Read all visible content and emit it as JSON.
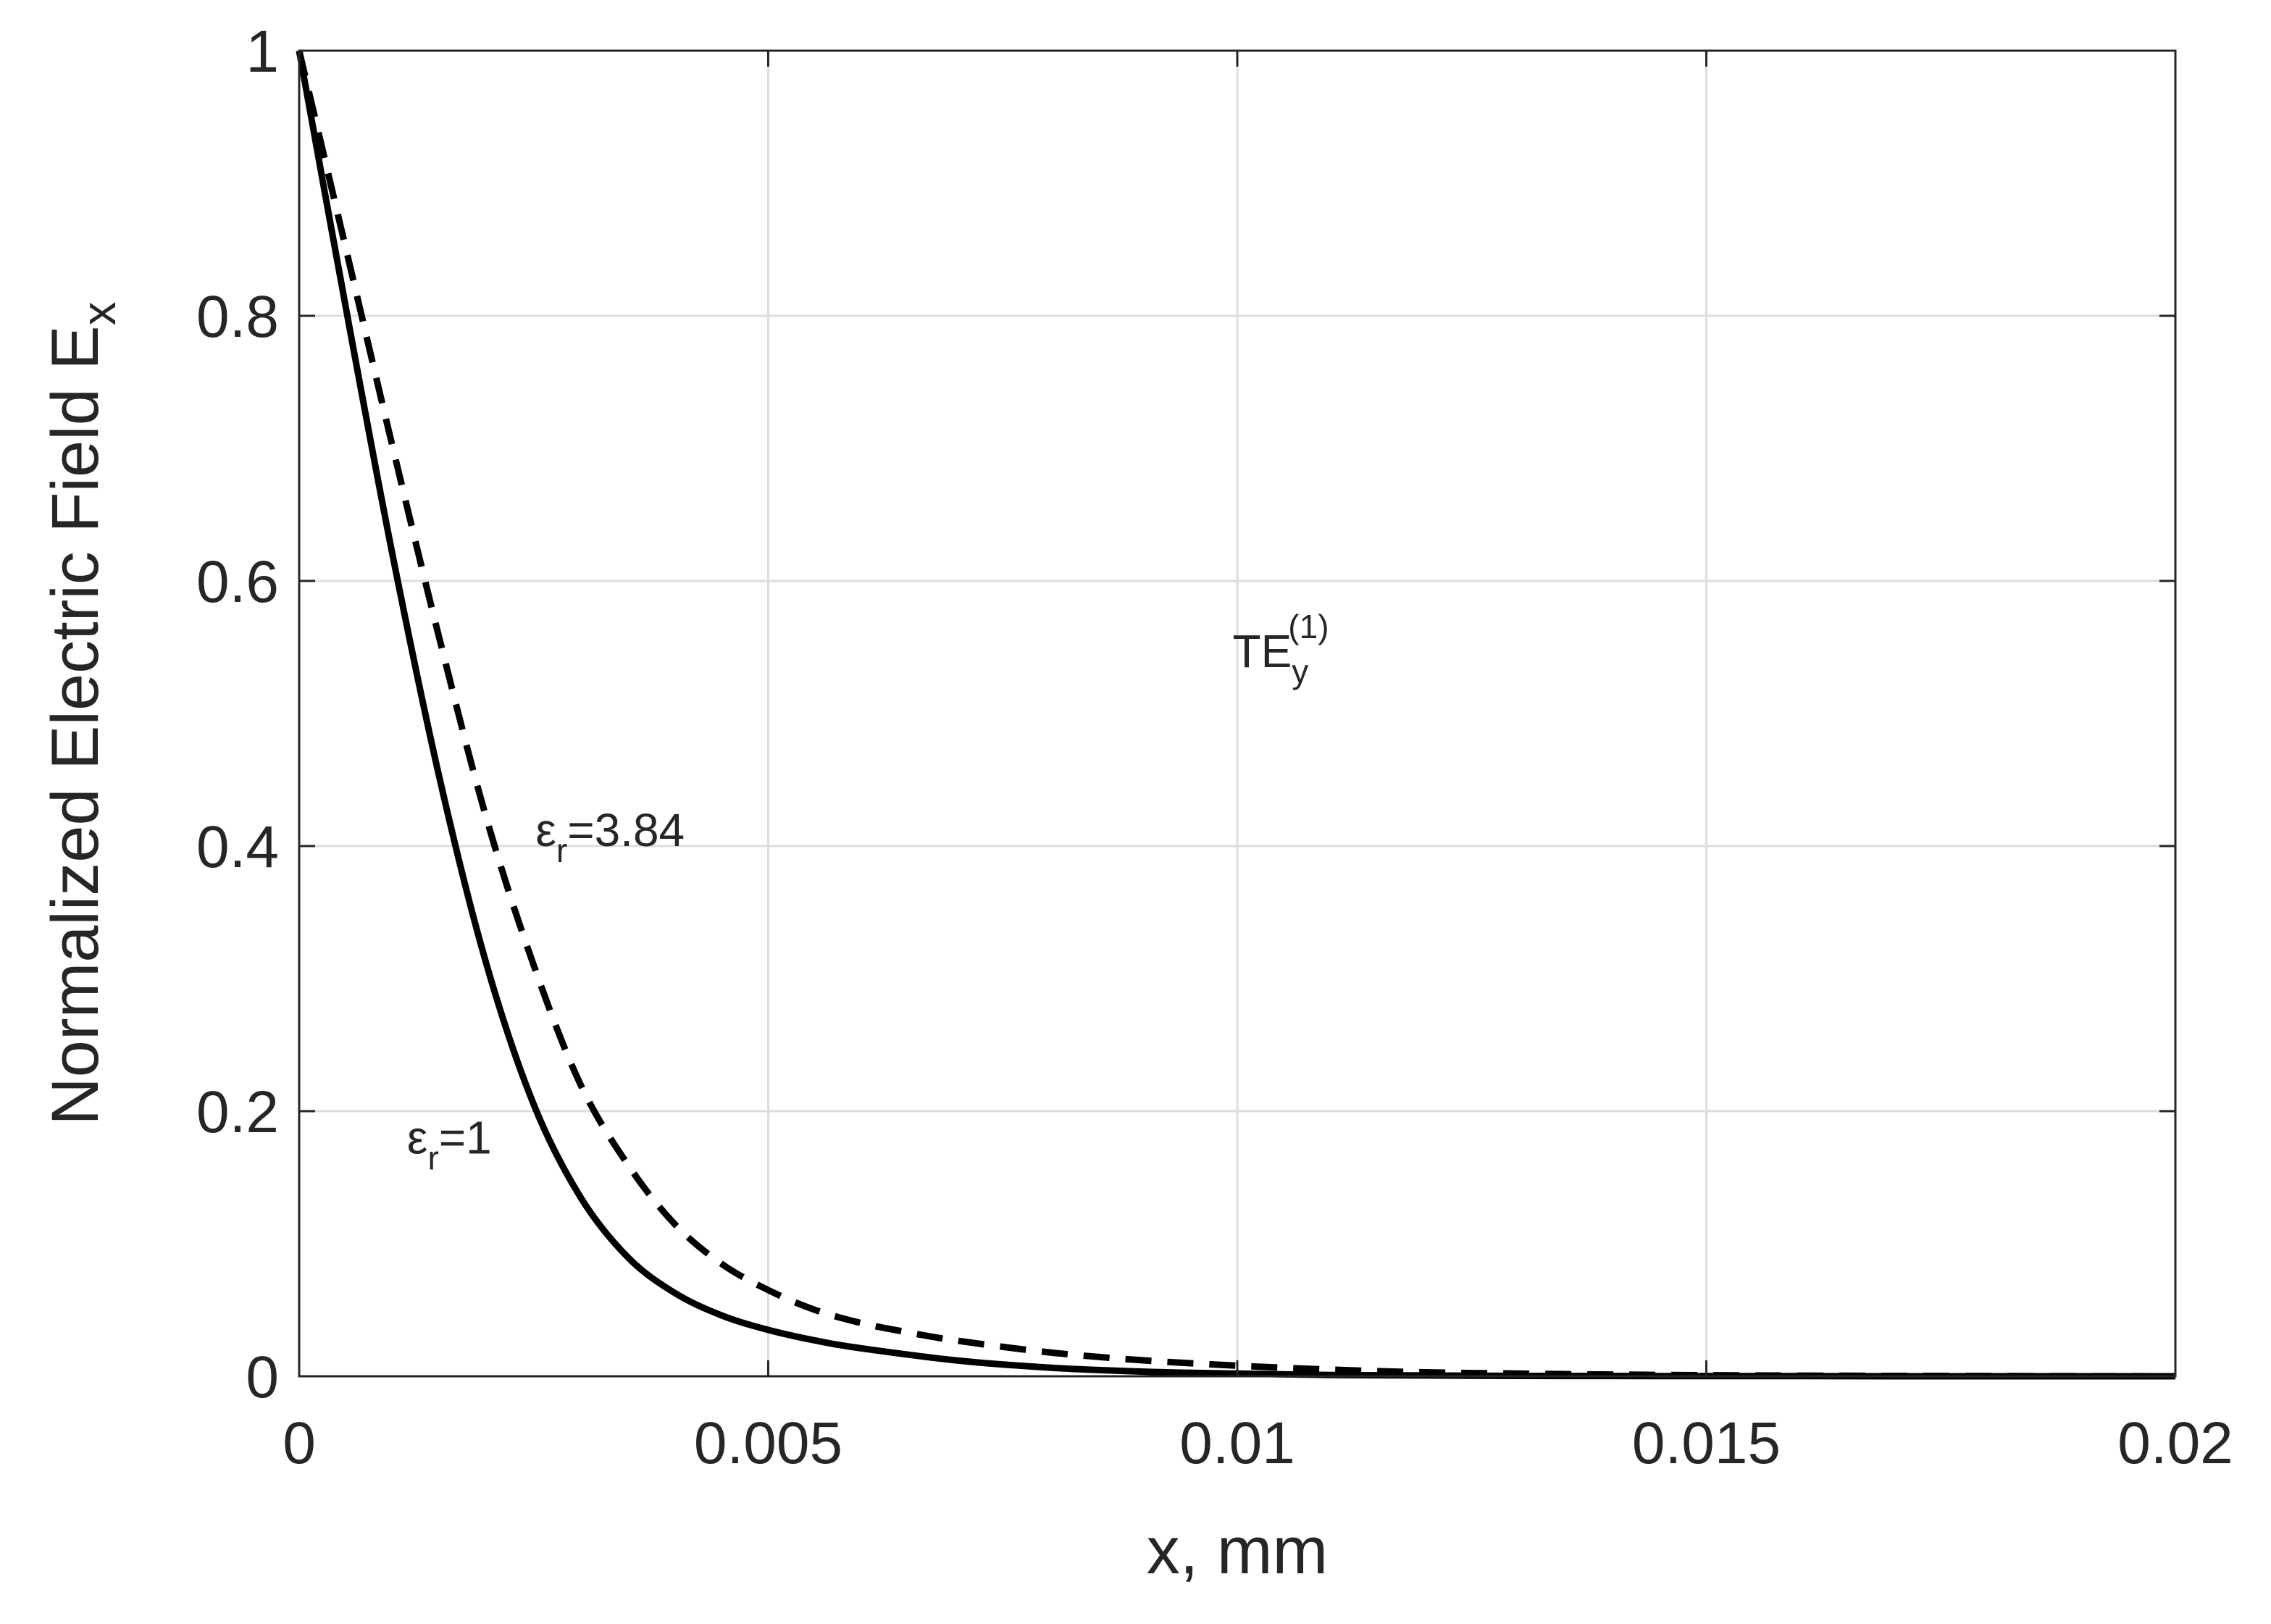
{
  "chart_data": {
    "type": "line",
    "title": "",
    "xlabel": "x, mm",
    "ylabel": {
      "main": "Normalized Electric Field E",
      "sub": "x"
    },
    "xlim": [
      0,
      0.02
    ],
    "ylim": [
      0,
      1
    ],
    "x_ticks": [
      0,
      0.005,
      0.01,
      0.015,
      0.02
    ],
    "x_tick_labels": [
      "0",
      "0.005",
      "0.01",
      "0.015",
      "0.02"
    ],
    "y_ticks": [
      0,
      0.2,
      0.4,
      0.6,
      0.8,
      1
    ],
    "y_tick_labels": [
      "0",
      "0.2",
      "0.4",
      "0.6",
      "0.8",
      "1"
    ],
    "grid": true,
    "series": [
      {
        "name": "εr=1",
        "style": "solid",
        "color": "#000000",
        "x": [
          0,
          0.0005,
          0.001,
          0.0015,
          0.002,
          0.0025,
          0.003,
          0.0035,
          0.004,
          0.0045,
          0.005,
          0.0055,
          0.006,
          0.007,
          0.008,
          0.009,
          0.01,
          0.011,
          0.012,
          0.013,
          0.014,
          0.015,
          0.016,
          0.017,
          0.018,
          0.019,
          0.02
        ],
        "values": [
          1.0,
          0.805,
          0.618,
          0.45,
          0.31,
          0.205,
          0.135,
          0.09,
          0.063,
          0.046,
          0.035,
          0.027,
          0.021,
          0.012,
          0.0065,
          0.0035,
          0.002,
          0.001,
          0.0006,
          0.0003,
          0.0002,
          0.0001,
          0.0001,
          0.0,
          0.0,
          0.0,
          0.0
        ]
      },
      {
        "name": "εr=3.84",
        "style": "dashed",
        "color": "#000000",
        "x": [
          0,
          0.0005,
          0.001,
          0.0015,
          0.002,
          0.0025,
          0.003,
          0.0035,
          0.004,
          0.0045,
          0.005,
          0.0055,
          0.006,
          0.0065,
          0.007,
          0.008,
          0.009,
          0.01,
          0.011,
          0.012,
          0.013,
          0.014,
          0.015,
          0.016,
          0.017,
          0.018,
          0.019,
          0.02
        ],
        "values": [
          1.0,
          0.85,
          0.7,
          0.555,
          0.42,
          0.31,
          0.22,
          0.16,
          0.115,
          0.085,
          0.065,
          0.05,
          0.04,
          0.033,
          0.027,
          0.018,
          0.012,
          0.008,
          0.005,
          0.003,
          0.002,
          0.0013,
          0.0008,
          0.0005,
          0.0003,
          0.0002,
          0.0001,
          0.0
        ]
      }
    ],
    "annotations": [
      {
        "id": "mode",
        "main": "TE",
        "sub": "y",
        "sup": "(1)",
        "x": 0.00995,
        "y": 0.535
      },
      {
        "id": "dashed",
        "main": "ε",
        "sub": "r",
        "rest": "=3.84",
        "x": 0.00252,
        "y": 0.4
      },
      {
        "id": "solid",
        "main": "ε",
        "sub": "r",
        "rest": "=1",
        "x": 0.00115,
        "y": 0.168
      }
    ]
  }
}
